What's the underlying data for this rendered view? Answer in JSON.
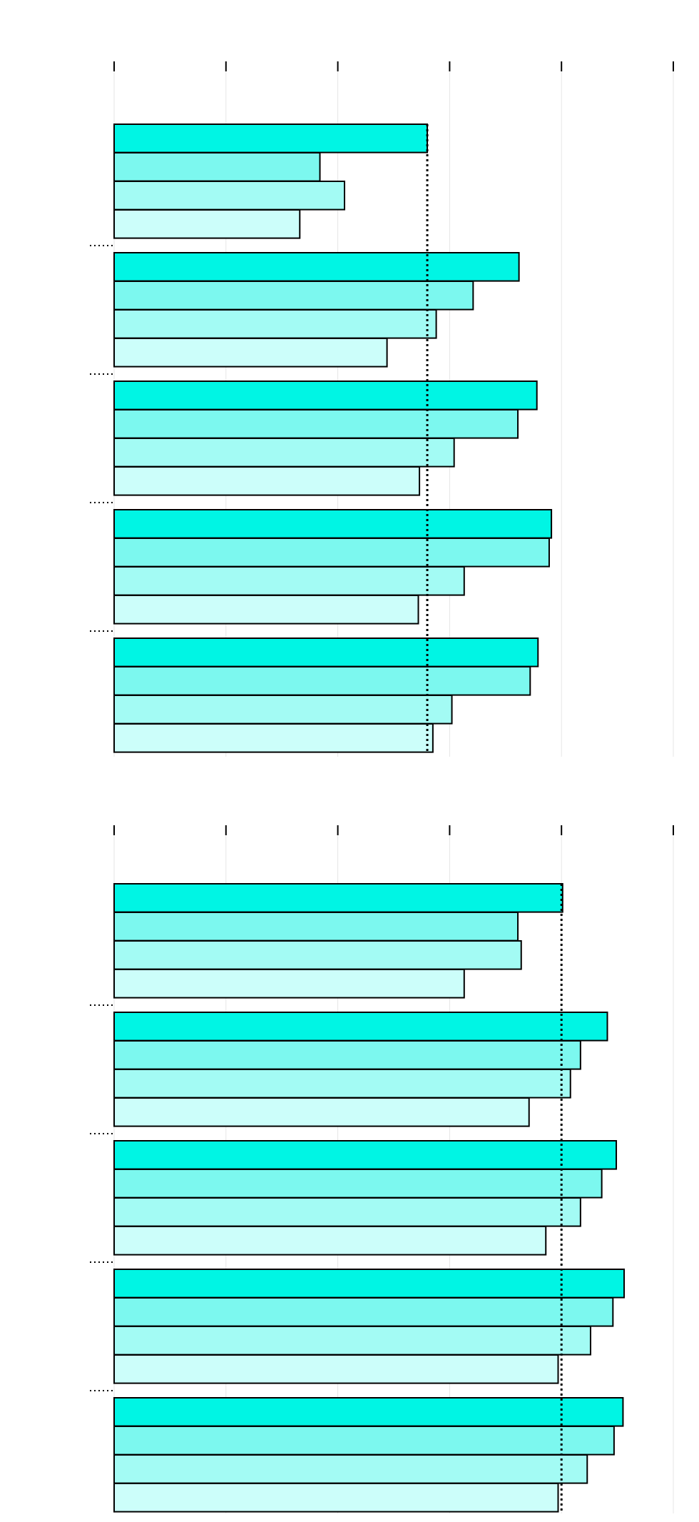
{
  "chart_data": [
    {
      "type": "bar",
      "orientation": "horizontal",
      "title": "",
      "xlabel": "",
      "ylabel": "",
      "xlim": [
        0,
        5
      ],
      "ticks": [
        0,
        1,
        2,
        3,
        4,
        5
      ],
      "grid": true,
      "legend": "none",
      "reference_line": 2.8,
      "categories": [
        "",
        "",
        "",
        "",
        ""
      ],
      "series": [
        {
          "color": "#00f5e4",
          "values": [
            2.8,
            3.62,
            3.78,
            3.91,
            3.79
          ]
        },
        {
          "color": "#7cf8ef",
          "values": [
            1.84,
            3.21,
            3.61,
            3.89,
            3.72
          ]
        },
        {
          "color": "#a3fbf4",
          "values": [
            2.06,
            2.88,
            3.04,
            3.13,
            3.02
          ]
        },
        {
          "color": "#ccfefa",
          "values": [
            1.66,
            2.44,
            2.73,
            2.72,
            2.85
          ]
        }
      ]
    },
    {
      "type": "bar",
      "orientation": "horizontal",
      "title": "",
      "xlabel": "",
      "ylabel": "",
      "xlim": [
        0,
        5
      ],
      "ticks": [
        0,
        1,
        2,
        3,
        4,
        5
      ],
      "grid": true,
      "legend": "none",
      "reference_line": 4.0,
      "categories": [
        "",
        "",
        "",
        "",
        ""
      ],
      "series": [
        {
          "color": "#00f5e4",
          "values": [
            4.01,
            4.41,
            4.49,
            4.56,
            4.55
          ]
        },
        {
          "color": "#7cf8ef",
          "values": [
            3.61,
            4.17,
            4.36,
            4.46,
            4.47
          ]
        },
        {
          "color": "#a3fbf4",
          "values": [
            3.64,
            4.08,
            4.17,
            4.26,
            4.23
          ]
        },
        {
          "color": "#ccfefa",
          "values": [
            3.13,
            3.71,
            3.86,
            3.97,
            3.97
          ]
        }
      ]
    }
  ]
}
